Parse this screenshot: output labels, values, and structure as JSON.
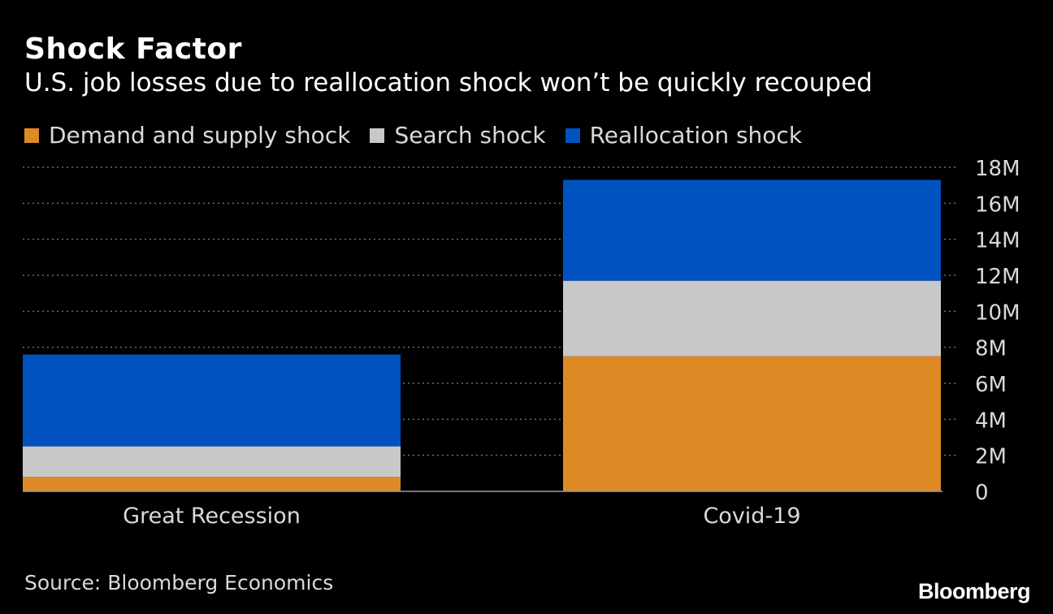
{
  "chart_data": {
    "type": "bar",
    "stacked": true,
    "title": "Shock Factor",
    "subtitle": "U.S. job losses due to reallocation shock won’t be quickly recouped",
    "categories": [
      "Great Recession",
      "Covid-19"
    ],
    "series": [
      {
        "name": "Demand and supply shock",
        "color": "#dd8a25",
        "values": [
          0.8,
          7.5
        ]
      },
      {
        "name": "Search shock",
        "color": "#c8c8c8",
        "values": [
          1.7,
          4.2
        ]
      },
      {
        "name": "Reallocation shock",
        "color": "#0052bf",
        "values": [
          5.1,
          5.6
        ]
      }
    ],
    "ylim": [
      0,
      18
    ],
    "yticks": [
      0,
      2,
      4,
      6,
      8,
      10,
      12,
      14,
      16,
      18
    ],
    "ytick_labels": [
      "0",
      "2M",
      "4M",
      "6M",
      "8M",
      "10M",
      "12M",
      "14M",
      "16M",
      "18M"
    ],
    "y_axis_side": "right",
    "grid": "dotted horizontal",
    "xlabel": "",
    "ylabel": ""
  },
  "footer": {
    "source": "Source: Bloomberg Economics",
    "brand": "Bloomberg"
  }
}
